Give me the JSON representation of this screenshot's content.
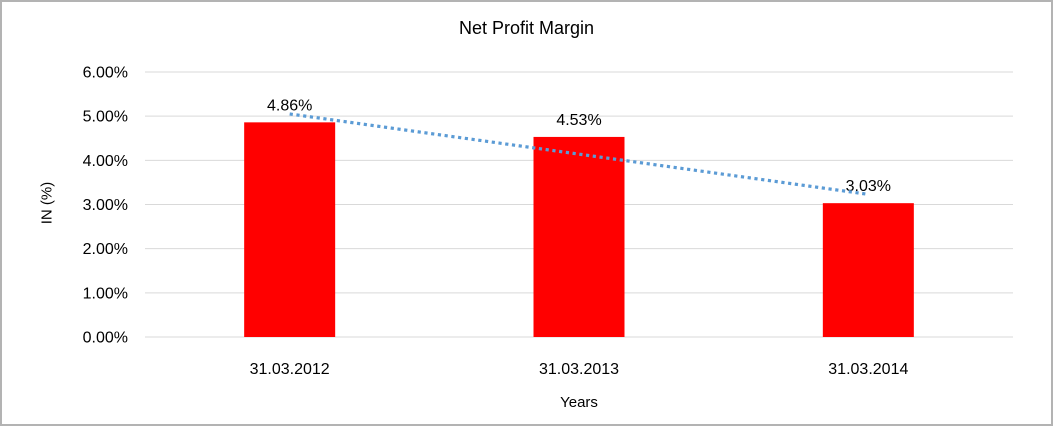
{
  "window": {
    "background": "#ffffff",
    "border_color": "#b3b3b3"
  },
  "chart_data": {
    "type": "bar",
    "title": "Net Profit Margin",
    "xlabel": "Years",
    "ylabel": "IN (%)",
    "categories": [
      "31.03.2012",
      "31.03.2013",
      "31.03.2014"
    ],
    "values": [
      4.86,
      4.53,
      3.03
    ],
    "data_labels": [
      "4.86%",
      "4.53%",
      "3.03%"
    ],
    "ylim": [
      0,
      6
    ],
    "ytick_labels": [
      "0.00%",
      "1.00%",
      "2.00%",
      "3.00%",
      "4.00%",
      "5.00%",
      "6.00%"
    ],
    "grid": true,
    "legend": false,
    "bar_color": "#ff0000",
    "gridline_color": "#d9d9d9",
    "text_color": "#000000",
    "trendline": {
      "type": "linear",
      "style": "dotted",
      "color": "#5b9bd5",
      "values": [
        5.05,
        4.14,
        3.23
      ]
    }
  }
}
